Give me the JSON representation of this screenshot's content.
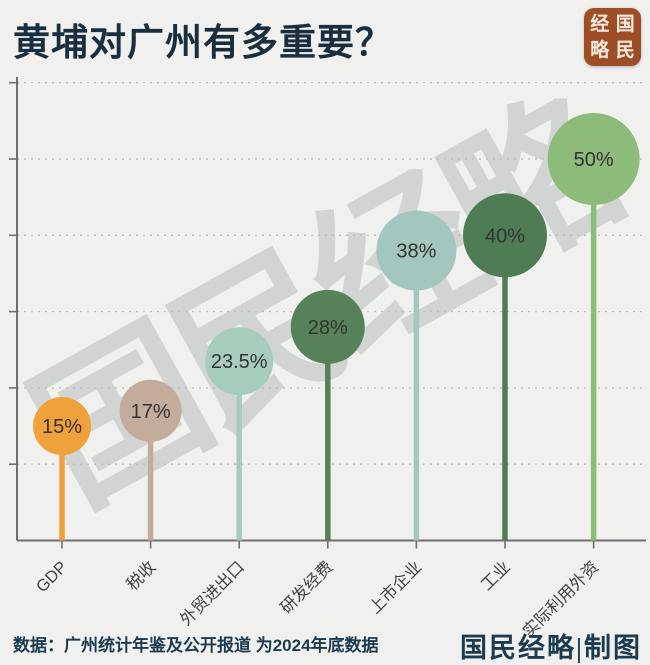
{
  "title": "黄埔对广州有多重要？",
  "seal": {
    "chars": [
      "经",
      "国",
      "略",
      "民"
    ]
  },
  "watermark": "国民经略",
  "chart_data": {
    "type": "lollipop",
    "title": "黄埔对广州有多重要？",
    "categories": [
      "GDP",
      "税收",
      "外贸进出口",
      "研发经费",
      "上市企业",
      "工业",
      "实际利用外资"
    ],
    "values": [
      15,
      17,
      23.5,
      28,
      38,
      40,
      50
    ],
    "labels": [
      "15%",
      "17%",
      "23.5%",
      "28%",
      "38%",
      "40%",
      "50%"
    ],
    "colors": [
      "#EFA13B",
      "#C3AC9C",
      "#A8CCBC",
      "#568159",
      "#A3C6BE",
      "#4E7C54",
      "#8DBB79"
    ],
    "radii": [
      29,
      31,
      34,
      37,
      40,
      42,
      46
    ],
    "ylim": [
      0,
      60
    ],
    "grid_step": 10,
    "grid": true,
    "grid_color": "#bdbdbd",
    "axis_color": "#6f6f6f",
    "value_label_color": "#333333",
    "category_label_color": "#424242",
    "legend": "none",
    "xlabel": "",
    "ylabel": ""
  },
  "footer": {
    "source": "数据：广州统计年鉴及公开报道 为2024年底数据",
    "credit": "国民经略|制图"
  }
}
